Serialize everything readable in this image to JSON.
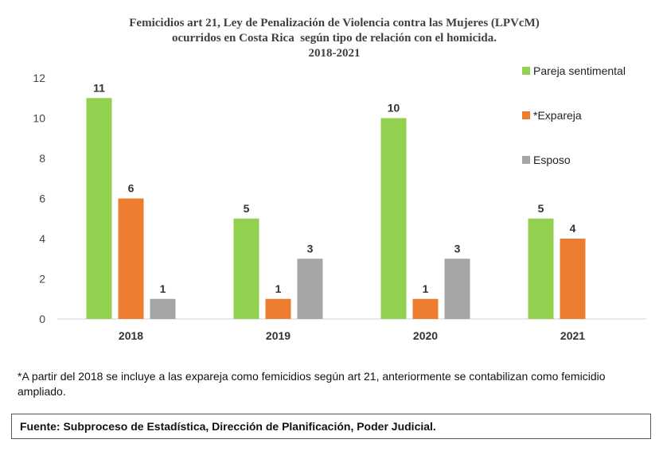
{
  "chart_data": {
    "type": "bar",
    "title_lines": [
      "Femicidios art 21, Ley de Penalización de Violencia contra las Mujeres (LPVcM)",
      "ocurridos en Costa Rica  según tipo de relación con el homicida.",
      "2018-2021"
    ],
    "categories": [
      "2018",
      "2019",
      "2020",
      "2021"
    ],
    "series": [
      {
        "name": "Pareja sentimental",
        "color": "#92d050",
        "values": [
          11,
          5,
          10,
          5
        ]
      },
      {
        "name": "*Expareja",
        "color": "#ed7d31",
        "values": [
          6,
          1,
          1,
          4
        ]
      },
      {
        "name": "Esposo",
        "color": "#a5a5a5",
        "values": [
          1,
          3,
          3,
          null
        ]
      }
    ],
    "ylim": [
      0,
      12
    ],
    "yticks": [
      0,
      2,
      4,
      6,
      8,
      10,
      12
    ],
    "grid": false,
    "legend_position": "top-right"
  },
  "footnote": "*A partir del 2018 se incluye a las expareja como femicidios según art 21, anteriormente se contabilizan como femicidio ampliado.",
  "source": "Fuente: Subproceso de Estadística, Dirección de Planificación, Poder Judicial."
}
